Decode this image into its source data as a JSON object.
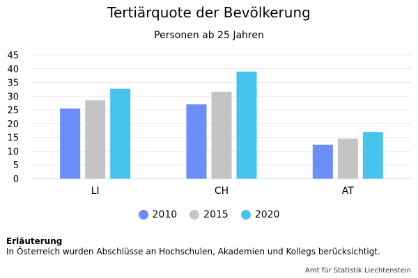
{
  "chart_data": {
    "type": "bar",
    "title": "Tertiärquote der Bevölkerung",
    "subtitle": "Personen ab 25 Jahren",
    "categories": [
      "LI",
      "CH",
      "AT"
    ],
    "series": [
      {
        "name": "2010",
        "color": "#6a8ef5",
        "values": [
          25.5,
          27,
          12.3
        ]
      },
      {
        "name": "2015",
        "color": "#c4c4c4",
        "values": [
          28.5,
          31.6,
          14.5
        ]
      },
      {
        "name": "2020",
        "color": "#45c4ee",
        "values": [
          32.7,
          38.9,
          16.9
        ]
      }
    ],
    "ylim": [
      0,
      45
    ],
    "yticks": [
      "0",
      "5",
      "10",
      "15",
      "20",
      "25",
      "30",
      "35",
      "40",
      "45"
    ],
    "grid": true,
    "legend_position": "bottom"
  },
  "note": {
    "title": "Erläuterung",
    "text": "In Österreich wurden Abschlüsse an Hochschulen, Akademien und Kollegs berücksichtigt."
  },
  "credits": "Amt für Statistik Liechtenstein"
}
